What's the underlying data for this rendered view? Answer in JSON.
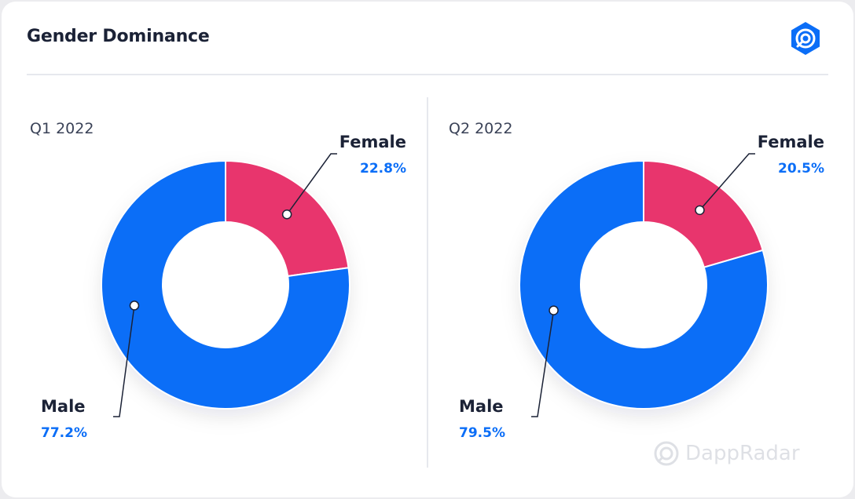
{
  "header": {
    "title": "Gender Dominance",
    "logo_icon": "dappradar-logo-icon"
  },
  "watermark": {
    "text": "DappRadar",
    "icon": "dappradar-logo-icon"
  },
  "colors": {
    "male": "#0b6ef7",
    "female": "#e8356d",
    "label_dark": "#1b2236",
    "label_blue": "#0b6ef7",
    "leader": "#1b2236"
  },
  "chart_data": [
    {
      "type": "pie",
      "subtitle": "Q1 2022",
      "donut": true,
      "slices": [
        {
          "label": "Female",
          "value": 22.8,
          "value_label": "22.8%"
        },
        {
          "label": "Male",
          "value": 77.2,
          "value_label": "77.2%"
        }
      ]
    },
    {
      "type": "pie",
      "subtitle": "Q2 2022",
      "donut": true,
      "slices": [
        {
          "label": "Female",
          "value": 20.5,
          "value_label": "20.5%"
        },
        {
          "label": "Male",
          "value": 79.5,
          "value_label": "79.5%"
        }
      ]
    }
  ]
}
